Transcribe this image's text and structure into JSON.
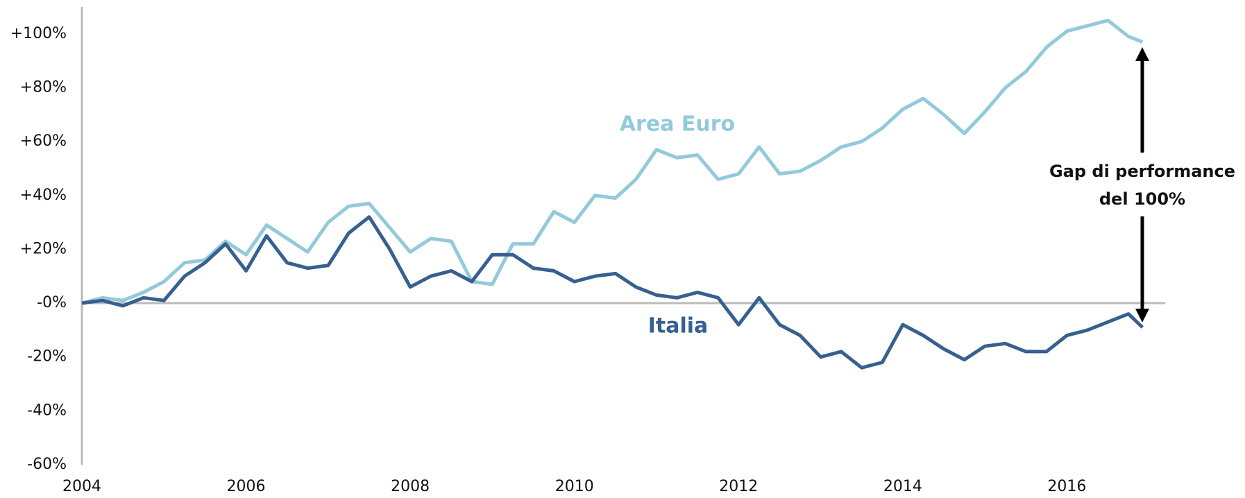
{
  "chart_data": {
    "type": "line",
    "x": [
      2004,
      2004.25,
      2004.5,
      2004.75,
      2005,
      2005.25,
      2005.5,
      2005.75,
      2006,
      2006.25,
      2006.5,
      2006.75,
      2007,
      2007.25,
      2007.5,
      2007.75,
      2008,
      2008.25,
      2008.5,
      2008.75,
      2009,
      2009.25,
      2009.5,
      2009.75,
      2010,
      2010.25,
      2010.5,
      2010.75,
      2011,
      2011.25,
      2011.5,
      2011.75,
      2012,
      2012.25,
      2012.5,
      2012.75,
      2013,
      2013.25,
      2013.5,
      2013.75,
      2014,
      2014.25,
      2014.5,
      2014.75,
      2015,
      2015.25,
      2015.5,
      2015.75,
      2016,
      2016.25,
      2016.5,
      2016.75,
      2016.92
    ],
    "series": [
      {
        "name": "Area Euro",
        "color": "#92cadb",
        "values": [
          0,
          2,
          1,
          4,
          8,
          15,
          16,
          23,
          18,
          29,
          24,
          19,
          30,
          36,
          37,
          28,
          19,
          24,
          23,
          8,
          7,
          22,
          22,
          34,
          30,
          40,
          39,
          46,
          57,
          54,
          55,
          46,
          48,
          58,
          48,
          49,
          53,
          58,
          60,
          65,
          72,
          76,
          70,
          63,
          71,
          80,
          86,
          95,
          101,
          103,
          105,
          99,
          97
        ]
      },
      {
        "name": "Italia",
        "color": "#36608f",
        "values": [
          0,
          1,
          -1,
          2,
          1,
          10,
          15,
          22,
          12,
          25,
          15,
          13,
          14,
          26,
          32,
          20,
          6,
          10,
          12,
          8,
          18,
          18,
          13,
          12,
          8,
          10,
          11,
          6,
          3,
          2,
          4,
          2,
          -8,
          2,
          -8,
          -12,
          -20,
          -18,
          -24,
          -22,
          -8,
          -12,
          -17,
          -21,
          -16,
          -15,
          -18,
          -18,
          -12,
          -10,
          -7,
          -4,
          -9
        ]
      }
    ],
    "annotations": [
      "Gap di performance",
      "del 100%"
    ],
    "xlim": [
      2004,
      2018
    ],
    "xticks": [
      2004,
      2006,
      2008,
      2010,
      2012,
      2014,
      2016
    ],
    "ylim": [
      -60,
      110
    ],
    "yticks": [
      {
        "value": -60,
        "label": "-60%"
      },
      {
        "value": -40,
        "label": "-40%"
      },
      {
        "value": -20,
        "label": "-20%"
      },
      {
        "value": 0,
        "label": "-0%"
      },
      {
        "value": 20,
        "label": "+20%"
      },
      {
        "value": 40,
        "label": "+40%"
      },
      {
        "value": 60,
        "label": "+60%"
      },
      {
        "value": 80,
        "label": "+80%"
      },
      {
        "value": 100,
        "label": "+100%"
      }
    ]
  }
}
